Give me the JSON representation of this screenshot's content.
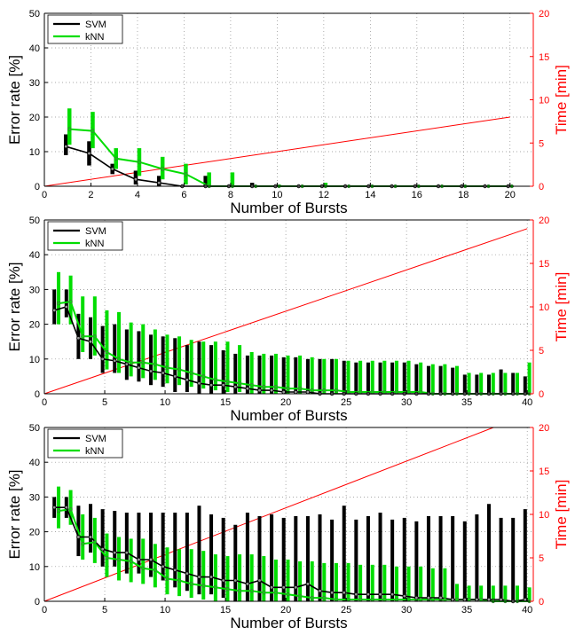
{
  "figure": {
    "x_label": "Number of Bursts",
    "y_label": "Error rate [%]",
    "y2_label": "Time [min]",
    "series_names": [
      "SVM",
      "kNN"
    ],
    "colors": {
      "svm": "#000000",
      "knn": "#00dd00",
      "time": "#ff0000"
    },
    "grid": true
  },
  "chart_data": [
    {
      "type": "line",
      "xlim": [
        0,
        21
      ],
      "ylim": [
        0,
        50
      ],
      "y2lim": [
        0,
        20
      ],
      "xticks": [
        0,
        2,
        4,
        6,
        8,
        10,
        12,
        14,
        16,
        18,
        20
      ],
      "yticks": [
        0,
        10,
        20,
        30,
        40,
        50
      ],
      "y2ticks": [
        0,
        5,
        10,
        15,
        20
      ],
      "legend": "top-left",
      "series": [
        {
          "name": "SVM",
          "x": [
            1,
            2,
            3,
            4,
            5,
            6,
            7,
            8,
            9,
            10,
            11,
            12,
            13,
            14,
            15,
            16,
            17,
            18,
            19,
            20
          ],
          "y": [
            11.5,
            9.5,
            5,
            2,
            1,
            0,
            0,
            0,
            0,
            0,
            0,
            0,
            0,
            0,
            0,
            0,
            0,
            0,
            0,
            0
          ],
          "lo": [
            9,
            6,
            3.5,
            0.5,
            0,
            0,
            0,
            0,
            0,
            0,
            0,
            0,
            0,
            0,
            0,
            0,
            0,
            0,
            0,
            0
          ],
          "hi": [
            15,
            13,
            6.5,
            4.5,
            3,
            0,
            3,
            0,
            1,
            0,
            0,
            0,
            0,
            0,
            0,
            0,
            0,
            0,
            0,
            0
          ]
        },
        {
          "name": "kNN",
          "x": [
            1,
            2,
            3,
            4,
            5,
            6,
            7,
            8,
            9,
            10,
            11,
            12,
            13,
            14,
            15,
            16,
            17,
            18,
            19,
            20
          ],
          "y": [
            16.5,
            16,
            8,
            7,
            5,
            3.5,
            0,
            0,
            0,
            0,
            0,
            0,
            0,
            0,
            0,
            0,
            0,
            0,
            0,
            0
          ],
          "lo": [
            12,
            11,
            5,
            3,
            2,
            0.5,
            0,
            0,
            0,
            0,
            0,
            0,
            0,
            0,
            0,
            0,
            0,
            0,
            0,
            0
          ],
          "hi": [
            22.5,
            21.5,
            11,
            11,
            8.5,
            6.5,
            4,
            4,
            0,
            0.5,
            0,
            1,
            0,
            0,
            0,
            0,
            0,
            0,
            0,
            0
          ]
        },
        {
          "name": "Time",
          "axis": "right",
          "x": [
            0,
            20
          ],
          "y": [
            0,
            8
          ]
        }
      ]
    },
    {
      "type": "line",
      "xlim": [
        0,
        40.5
      ],
      "ylim": [
        0,
        50
      ],
      "y2lim": [
        0,
        20
      ],
      "xticks": [
        0,
        5,
        10,
        15,
        20,
        25,
        30,
        35,
        40
      ],
      "yticks": [
        0,
        10,
        20,
        30,
        40,
        50
      ],
      "y2ticks": [
        0,
        5,
        10,
        15,
        20
      ],
      "legend": "top-left",
      "series": [
        {
          "name": "SVM",
          "x": [
            1,
            2,
            3,
            4,
            5,
            6,
            7,
            8,
            9,
            10,
            11,
            12,
            13,
            14,
            15,
            16,
            17,
            18,
            19,
            20,
            21,
            22,
            23,
            24,
            25,
            26,
            27,
            28,
            29,
            30,
            31,
            32,
            33,
            34,
            35,
            36,
            37,
            38,
            39,
            40
          ],
          "y": [
            24,
            25,
            16,
            15,
            10,
            9.5,
            8.5,
            7.5,
            6.5,
            6,
            5,
            4,
            3,
            2.5,
            2.5,
            2,
            1.5,
            1,
            1,
            0.5,
            0.5,
            0.5,
            0,
            0,
            0,
            0,
            0,
            0,
            0,
            0,
            0,
            0,
            0,
            0,
            0,
            0,
            0,
            0,
            0,
            0
          ],
          "lo": [
            20,
            22,
            10,
            10,
            6,
            6,
            4,
            3.5,
            2.5,
            2,
            0.5,
            0.5,
            0,
            0,
            0,
            0,
            0,
            0,
            0,
            0,
            0,
            0,
            0,
            0,
            0,
            0,
            0,
            0,
            0,
            0,
            0,
            0,
            0,
            0,
            0,
            0,
            0,
            0,
            0,
            0
          ],
          "hi": [
            30,
            30,
            23,
            22,
            19.5,
            20,
            18.5,
            18,
            17,
            16.5,
            16,
            14,
            15,
            14,
            12.5,
            11.5,
            11,
            11,
            11,
            10.5,
            10.5,
            10,
            10,
            10,
            9.5,
            9,
            9,
            9,
            9,
            9,
            8.5,
            8,
            8,
            7.5,
            5.5,
            5.5,
            5.5,
            7,
            6,
            5
          ]
        },
        {
          "name": "kNN",
          "x": [
            1,
            2,
            3,
            4,
            5,
            6,
            7,
            8,
            9,
            10,
            11,
            12,
            13,
            14,
            15,
            16,
            17,
            18,
            19,
            20,
            21,
            22,
            23,
            24,
            25,
            26,
            27,
            28,
            29,
            30,
            31,
            32,
            33,
            34,
            35,
            36,
            37,
            38,
            39,
            40
          ],
          "y": [
            26,
            26.5,
            16.5,
            16.5,
            12,
            10,
            9,
            9,
            8.5,
            7.5,
            7,
            6,
            5,
            4,
            3.5,
            3,
            2.5,
            2,
            2,
            1.5,
            1.5,
            1,
            1,
            1,
            0.5,
            0.5,
            0.5,
            0.5,
            0.5,
            0.5,
            0.5,
            0,
            0,
            0,
            0,
            0,
            0,
            0,
            0,
            0
          ],
          "lo": [
            20,
            20,
            12,
            11,
            7,
            6,
            5,
            4.5,
            4,
            3,
            2.5,
            2,
            1.5,
            1,
            0.5,
            0.5,
            0,
            0,
            0,
            0,
            0,
            0,
            0,
            0,
            0,
            0,
            0,
            0,
            0,
            0,
            0,
            0,
            0,
            0,
            0,
            0,
            0,
            0,
            0,
            0
          ],
          "hi": [
            35,
            34,
            28,
            28,
            24,
            23.5,
            20.5,
            20,
            18.5,
            17,
            16.5,
            15.5,
            15,
            15,
            15,
            14,
            12,
            11.5,
            11.5,
            11,
            11,
            10.5,
            10,
            10,
            9.5,
            9.5,
            9.5,
            9.5,
            9.5,
            9.5,
            9,
            8.5,
            8.5,
            8,
            6,
            6,
            6,
            6,
            6,
            9
          ]
        },
        {
          "name": "Time",
          "axis": "right",
          "x": [
            0,
            40
          ],
          "y": [
            0,
            19
          ]
        }
      ]
    },
    {
      "type": "line",
      "xlim": [
        0,
        40.5
      ],
      "ylim": [
        0,
        50
      ],
      "y2lim": [
        0,
        20
      ],
      "xticks": [
        0,
        5,
        10,
        15,
        20,
        25,
        30,
        35,
        40
      ],
      "yticks": [
        0,
        10,
        20,
        30,
        40,
        50
      ],
      "y2ticks": [
        0,
        5,
        10,
        15,
        20
      ],
      "legend": "top-left",
      "series": [
        {
          "name": "SVM",
          "x": [
            1,
            2,
            3,
            4,
            5,
            6,
            7,
            8,
            9,
            10,
            11,
            12,
            13,
            14,
            15,
            16,
            17,
            18,
            19,
            20,
            21,
            22,
            23,
            24,
            25,
            26,
            27,
            28,
            29,
            30,
            31,
            32,
            33,
            34,
            35,
            36,
            37,
            38,
            39,
            40
          ],
          "y": [
            27,
            27,
            18.5,
            18.5,
            15,
            14,
            14,
            12,
            12,
            10,
            9,
            8,
            7,
            7,
            6,
            6,
            5,
            6,
            4,
            4,
            4,
            5,
            3,
            2.5,
            2.5,
            2,
            2,
            2,
            2,
            1.5,
            1,
            1,
            1,
            0.5,
            0.5,
            0.5,
            0.5,
            0.5,
            0,
            0.5
          ],
          "lo": [
            24,
            24,
            13,
            14,
            10,
            10,
            8,
            8,
            7,
            6,
            4,
            3,
            2,
            2,
            1,
            0,
            0,
            0,
            0,
            0,
            0,
            0,
            0,
            0,
            0,
            0,
            0,
            0,
            0,
            0,
            0,
            0,
            0,
            0,
            0,
            0,
            0,
            0,
            0,
            0
          ],
          "hi": [
            30,
            30,
            27.5,
            28,
            26.5,
            26,
            25.5,
            25.5,
            25.5,
            25.5,
            25.5,
            25.5,
            27.5,
            25,
            24,
            22,
            25.5,
            24.5,
            25,
            24,
            24.5,
            24.5,
            25,
            23.5,
            27.5,
            23.5,
            24.5,
            25.5,
            23.5,
            24,
            23,
            24.5,
            24.5,
            24.5,
            23,
            25,
            28,
            24,
            24,
            26.5
          ]
        },
        {
          "name": "kNN",
          "x": [
            1,
            2,
            3,
            4,
            5,
            6,
            7,
            8,
            9,
            10,
            11,
            12,
            13,
            14,
            15,
            16,
            17,
            18,
            19,
            20,
            21,
            22,
            23,
            24,
            25,
            26,
            27,
            28,
            29,
            30,
            31,
            32,
            33,
            34,
            35,
            36,
            37,
            38,
            39,
            40
          ],
          "y": [
            26,
            26.5,
            16.5,
            17,
            12.5,
            12,
            11.5,
            9.5,
            9,
            6.5,
            6,
            5,
            4.5,
            4,
            3.5,
            3,
            3,
            2.5,
            2.5,
            2,
            1.5,
            1,
            1,
            0.5,
            0.5,
            0.5,
            0.5,
            0.5,
            0.5,
            0.5,
            0.5,
            0.5,
            0.5,
            0.5,
            0.5,
            0.5,
            0,
            0,
            0,
            0
          ],
          "lo": [
            21,
            22,
            12,
            11,
            7,
            6,
            5.5,
            5,
            4,
            2,
            1.5,
            1,
            0.5,
            0,
            0,
            0,
            0,
            0,
            0,
            0,
            0,
            0,
            0,
            0,
            0,
            0,
            0,
            0,
            0,
            0,
            0,
            0,
            0,
            0,
            0,
            0,
            0,
            0,
            0,
            0
          ],
          "hi": [
            33,
            32,
            25,
            24,
            19.5,
            18.5,
            18,
            18,
            16.5,
            15.5,
            15,
            15,
            14.5,
            13.5,
            13,
            13.5,
            13.5,
            13,
            12,
            12,
            11.5,
            11.5,
            11,
            11,
            11,
            10.5,
            10.5,
            10.5,
            10,
            10,
            10,
            9.5,
            9.5,
            5,
            4.5,
            4.5,
            4.5,
            4.5,
            4.5,
            4
          ]
        },
        {
          "name": "Time",
          "axis": "right",
          "x": [
            0,
            37.2
          ],
          "y": [
            0,
            20
          ]
        }
      ]
    }
  ]
}
